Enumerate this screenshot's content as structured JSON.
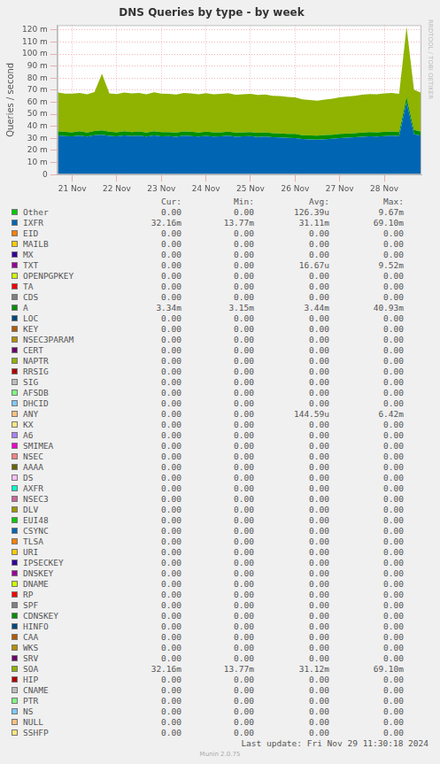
{
  "chart_data": {
    "type": "area",
    "title": "DNS Queries by type - by week",
    "y_label": "Queries / second",
    "categories": [
      null,
      null,
      "21 Nov",
      null,
      null,
      null,
      null,
      null,
      "22 Nov",
      null,
      null,
      null,
      null,
      null,
      "23 Nov",
      null,
      null,
      null,
      null,
      null,
      "24 Nov",
      null,
      null,
      null,
      null,
      null,
      "25 Nov",
      null,
      null,
      null,
      null,
      null,
      "26 Nov",
      null,
      null,
      null,
      null,
      null,
      "27 Nov",
      null,
      null,
      null,
      null,
      null,
      "28 Nov",
      null,
      null,
      null,
      null,
      null
    ],
    "series": [
      {
        "name": "IXFR",
        "color": "#0066b3",
        "values": [
          0.0325,
          0.032,
          0.0318,
          0.0323,
          0.0315,
          0.0326,
          0.033,
          0.0321,
          0.0317,
          0.0324,
          0.0319,
          0.0322,
          0.0316,
          0.0325,
          0.0318,
          0.032,
          0.0314,
          0.0323,
          0.0319,
          0.0316,
          0.0321,
          0.0315,
          0.0318,
          0.0322,
          0.0313,
          0.0317,
          0.0319,
          0.0312,
          0.0316,
          0.031,
          0.0308,
          0.0305,
          0.0302,
          0.0295,
          0.0292,
          0.029,
          0.0294,
          0.0298,
          0.0303,
          0.0306,
          0.031,
          0.0314,
          0.0318,
          0.0315,
          0.032,
          0.0322,
          0.0319,
          0.06,
          0.0335,
          0.03216
        ]
      },
      {
        "name": "A",
        "color": "#008f00",
        "values": [
          0.0035,
          0.0034,
          0.0033,
          0.0036,
          0.0034,
          0.0035,
          0.0037,
          0.0034,
          0.0033,
          0.0035,
          0.0034,
          0.0036,
          0.0033,
          0.0035,
          0.0034,
          0.0033,
          0.0035,
          0.0034,
          0.0036,
          0.0033,
          0.0034,
          0.0035,
          0.0033,
          0.0034,
          0.0036,
          0.0034,
          0.0033,
          0.0035,
          0.0034,
          0.0033,
          0.0034,
          0.0033,
          0.0035,
          0.0032,
          0.0033,
          0.0032,
          0.0034,
          0.0033,
          0.0035,
          0.0034,
          0.0033,
          0.0035,
          0.0034,
          0.0036,
          0.0034,
          0.0035,
          0.0033,
          0.0045,
          0.0036,
          0.00334
        ]
      },
      {
        "name": "SOA",
        "color": "#8fb300",
        "values": [
          0.0322,
          0.0318,
          0.0321,
          0.0319,
          0.0317,
          0.0324,
          0.047,
          0.0319,
          0.0318,
          0.0322,
          0.0321,
          0.0319,
          0.0318,
          0.0323,
          0.032,
          0.0317,
          0.0316,
          0.0321,
          0.0318,
          0.0317,
          0.032,
          0.0316,
          0.0319,
          0.032,
          0.0314,
          0.0316,
          0.0318,
          0.0313,
          0.0315,
          0.0311,
          0.0309,
          0.0306,
          0.0303,
          0.0297,
          0.0293,
          0.0291,
          0.0295,
          0.0299,
          0.0302,
          0.0307,
          0.0311,
          0.0313,
          0.0317,
          0.0316,
          0.0319,
          0.0321,
          0.0318,
          0.058,
          0.0333,
          0.03216
        ]
      }
    ],
    "ylim": [
      0,
      0.124
    ],
    "yticks": [
      0,
      {
        "value": 0.01,
        "label": "10 m"
      },
      {
        "value": 0.02,
        "label": "20 m"
      },
      {
        "value": 0.03,
        "label": "30 m"
      },
      {
        "value": 0.04,
        "label": "40 m"
      },
      {
        "value": 0.05,
        "label": "50 m"
      },
      {
        "value": 0.06,
        "label": "60 m"
      },
      {
        "value": 0.07,
        "label": "70 m"
      },
      {
        "value": 0.08,
        "label": "80 m"
      },
      {
        "value": 0.09,
        "label": "90 m"
      },
      {
        "value": 0.1,
        "label": "100 m"
      },
      {
        "value": 0.11,
        "label": "110 m"
      },
      {
        "value": 0.12,
        "label": "120 m"
      }
    ],
    "grid": true,
    "stacked": true
  },
  "side_text": "RRDTOOL / TOBI OETIKER",
  "legend_table": {
    "header": [
      "Cur:",
      "Min:",
      "Avg:",
      "Max:"
    ],
    "rows": [
      {
        "name": "Other",
        "color": "#00cc00",
        "cur": "0.00",
        "min": "0.00",
        "avg": "126.39u",
        "max": "9.67m"
      },
      {
        "name": "IXFR",
        "color": "#0066b3",
        "cur": "32.16m",
        "min": "13.77m",
        "avg": "31.11m",
        "max": "69.10m"
      },
      {
        "name": "EID",
        "color": "#ff8000",
        "cur": "0.00",
        "min": "0.00",
        "avg": "0.00",
        "max": "0.00"
      },
      {
        "name": "MAILB",
        "color": "#ffcc00",
        "cur": "0.00",
        "min": "0.00",
        "avg": "0.00",
        "max": "0.00"
      },
      {
        "name": "MX",
        "color": "#330099",
        "cur": "0.00",
        "min": "0.00",
        "avg": "0.00",
        "max": "0.00"
      },
      {
        "name": "TXT",
        "color": "#990099",
        "cur": "0.00",
        "min": "0.00",
        "avg": "16.67u",
        "max": "9.52m"
      },
      {
        "name": "OPENPGPKEY",
        "color": "#ccff00",
        "cur": "0.00",
        "min": "0.00",
        "avg": "0.00",
        "max": "0.00"
      },
      {
        "name": "TA",
        "color": "#ff0000",
        "cur": "0.00",
        "min": "0.00",
        "avg": "0.00",
        "max": "0.00"
      },
      {
        "name": "CDS",
        "color": "#808080",
        "cur": "0.00",
        "min": "0.00",
        "avg": "0.00",
        "max": "0.00"
      },
      {
        "name": "A",
        "color": "#008f00",
        "cur": "3.34m",
        "min": "3.15m",
        "avg": "3.44m",
        "max": "40.93m"
      },
      {
        "name": "LOC",
        "color": "#00487d",
        "cur": "0.00",
        "min": "0.00",
        "avg": "0.00",
        "max": "0.00"
      },
      {
        "name": "KEY",
        "color": "#b35a00",
        "cur": "0.00",
        "min": "0.00",
        "avg": "0.00",
        "max": "0.00"
      },
      {
        "name": "NSEC3PARAM",
        "color": "#b38f00",
        "cur": "0.00",
        "min": "0.00",
        "avg": "0.00",
        "max": "0.00"
      },
      {
        "name": "CERT",
        "color": "#6b006b",
        "cur": "0.00",
        "min": "0.00",
        "avg": "0.00",
        "max": "0.00"
      },
      {
        "name": "NAPTR",
        "color": "#8fb300",
        "cur": "0.00",
        "min": "0.00",
        "avg": "0.00",
        "max": "0.00"
      },
      {
        "name": "RRSIG",
        "color": "#b30000",
        "cur": "0.00",
        "min": "0.00",
        "avg": "0.00",
        "max": "0.00"
      },
      {
        "name": "SIG",
        "color": "#bebebe",
        "cur": "0.00",
        "min": "0.00",
        "avg": "0.00",
        "max": "0.00"
      },
      {
        "name": "AFSDB",
        "color": "#80ff80",
        "cur": "0.00",
        "min": "0.00",
        "avg": "0.00",
        "max": "0.00"
      },
      {
        "name": "DHCID",
        "color": "#80c9ff",
        "cur": "0.00",
        "min": "0.00",
        "avg": "0.00",
        "max": "0.00"
      },
      {
        "name": "ANY",
        "color": "#ffc080",
        "cur": "0.00",
        "min": "0.00",
        "avg": "144.59u",
        "max": "6.42m"
      },
      {
        "name": "KX",
        "color": "#ffe680",
        "cur": "0.00",
        "min": "0.00",
        "avg": "0.00",
        "max": "0.00"
      },
      {
        "name": "A6",
        "color": "#aa80ff",
        "cur": "0.00",
        "min": "0.00",
        "avg": "0.00",
        "max": "0.00"
      },
      {
        "name": "SMIMEA",
        "color": "#ee00cc",
        "cur": "0.00",
        "min": "0.00",
        "avg": "0.00",
        "max": "0.00"
      },
      {
        "name": "NSEC",
        "color": "#ff8080",
        "cur": "0.00",
        "min": "0.00",
        "avg": "0.00",
        "max": "0.00"
      },
      {
        "name": "AAAA",
        "color": "#666600",
        "cur": "0.00",
        "min": "0.00",
        "avg": "0.00",
        "max": "0.00"
      },
      {
        "name": "DS",
        "color": "#ffbfff",
        "cur": "0.00",
        "min": "0.00",
        "avg": "0.00",
        "max": "0.00"
      },
      {
        "name": "AXFR",
        "color": "#00ffcc",
        "cur": "0.00",
        "min": "0.00",
        "avg": "0.00",
        "max": "0.00"
      },
      {
        "name": "NSEC3",
        "color": "#cc6699",
        "cur": "0.00",
        "min": "0.00",
        "avg": "0.00",
        "max": "0.00"
      },
      {
        "name": "DLV",
        "color": "#999900",
        "cur": "0.00",
        "min": "0.00",
        "avg": "0.00",
        "max": "0.00"
      },
      {
        "name": "EUI48",
        "color": "#00cc00",
        "cur": "0.00",
        "min": "0.00",
        "avg": "0.00",
        "max": "0.00"
      },
      {
        "name": "CSYNC",
        "color": "#0066b3",
        "cur": "0.00",
        "min": "0.00",
        "avg": "0.00",
        "max": "0.00"
      },
      {
        "name": "TLSA",
        "color": "#ff8000",
        "cur": "0.00",
        "min": "0.00",
        "avg": "0.00",
        "max": "0.00"
      },
      {
        "name": "URI",
        "color": "#ffcc00",
        "cur": "0.00",
        "min": "0.00",
        "avg": "0.00",
        "max": "0.00"
      },
      {
        "name": "IPSECKEY",
        "color": "#330099",
        "cur": "0.00",
        "min": "0.00",
        "avg": "0.00",
        "max": "0.00"
      },
      {
        "name": "DNSKEY",
        "color": "#990099",
        "cur": "0.00",
        "min": "0.00",
        "avg": "0.00",
        "max": "0.00"
      },
      {
        "name": "DNAME",
        "color": "#ccff00",
        "cur": "0.00",
        "min": "0.00",
        "avg": "0.00",
        "max": "0.00"
      },
      {
        "name": "RP",
        "color": "#ff0000",
        "cur": "0.00",
        "min": "0.00",
        "avg": "0.00",
        "max": "0.00"
      },
      {
        "name": "SPF",
        "color": "#808080",
        "cur": "0.00",
        "min": "0.00",
        "avg": "0.00",
        "max": "0.00"
      },
      {
        "name": "CDNSKEY",
        "color": "#008f00",
        "cur": "0.00",
        "min": "0.00",
        "avg": "0.00",
        "max": "0.00"
      },
      {
        "name": "HINFO",
        "color": "#00487d",
        "cur": "0.00",
        "min": "0.00",
        "avg": "0.00",
        "max": "0.00"
      },
      {
        "name": "CAA",
        "color": "#b35a00",
        "cur": "0.00",
        "min": "0.00",
        "avg": "0.00",
        "max": "0.00"
      },
      {
        "name": "WKS",
        "color": "#b38f00",
        "cur": "0.00",
        "min": "0.00",
        "avg": "0.00",
        "max": "0.00"
      },
      {
        "name": "SRV",
        "color": "#6b006b",
        "cur": "0.00",
        "min": "0.00",
        "avg": "0.00",
        "max": "0.00"
      },
      {
        "name": "SOA",
        "color": "#8fb300",
        "cur": "32.16m",
        "min": "13.77m",
        "avg": "31.12m",
        "max": "69.10m"
      },
      {
        "name": "HIP",
        "color": "#b30000",
        "cur": "0.00",
        "min": "0.00",
        "avg": "0.00",
        "max": "0.00"
      },
      {
        "name": "CNAME",
        "color": "#bebebe",
        "cur": "0.00",
        "min": "0.00",
        "avg": "0.00",
        "max": "0.00"
      },
      {
        "name": "PTR",
        "color": "#80ff80",
        "cur": "0.00",
        "min": "0.00",
        "avg": "0.00",
        "max": "0.00"
      },
      {
        "name": "NS",
        "color": "#80c9ff",
        "cur": "0.00",
        "min": "0.00",
        "avg": "0.00",
        "max": "0.00"
      },
      {
        "name": "NULL",
        "color": "#ffc080",
        "cur": "0.00",
        "min": "0.00",
        "avg": "0.00",
        "max": "0.00"
      },
      {
        "name": "SSHFP",
        "color": "#ffe680",
        "cur": "0.00",
        "min": "0.00",
        "avg": "0.00",
        "max": "0.00"
      }
    ]
  },
  "footer": {
    "last_update": "Last update: Fri Nov 29 11:30:18 2024",
    "version": "Munin 2.0.75"
  }
}
